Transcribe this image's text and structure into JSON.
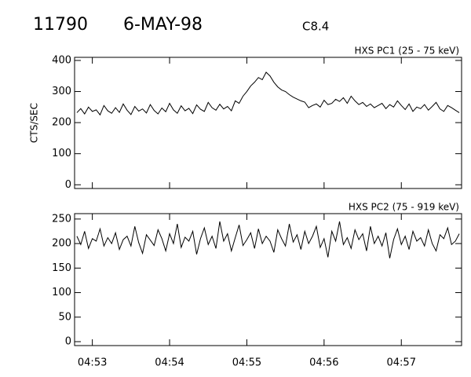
{
  "header": {
    "id": "11790",
    "date": "6-MAY-98",
    "class": "C8.4"
  },
  "chart_data": [
    {
      "type": "line",
      "title": "HXS PC1 (25 - 75 keV)",
      "y_label": "CTS/SEC",
      "color": "#000000",
      "xlim": [
        292.77,
        297.78
      ],
      "xticks": [
        {
          "value": 293,
          "label": "04:53"
        },
        {
          "value": 294,
          "label": "04:54"
        },
        {
          "value": 295,
          "label": "04:55"
        },
        {
          "value": 296,
          "label": "04:56"
        },
        {
          "value": 297,
          "label": "04:57"
        }
      ],
      "ylim": [
        -12,
        410
      ],
      "yticks": [
        0,
        100,
        200,
        300,
        400
      ],
      "x": [
        292.8,
        292.85,
        292.9,
        292.95,
        293.0,
        293.05,
        293.1,
        293.15,
        293.2,
        293.25,
        293.3,
        293.35,
        293.4,
        293.45,
        293.5,
        293.55,
        293.6,
        293.65,
        293.7,
        293.75,
        293.8,
        293.85,
        293.9,
        293.95,
        294.0,
        294.05,
        294.1,
        294.15,
        294.2,
        294.25,
        294.3,
        294.35,
        294.4,
        294.45,
        294.5,
        294.55,
        294.6,
        294.65,
        294.7,
        294.75,
        294.8,
        294.85,
        294.9,
        294.95,
        295.0,
        295.05,
        295.1,
        295.15,
        295.2,
        295.25,
        295.3,
        295.35,
        295.4,
        295.45,
        295.5,
        295.55,
        295.6,
        295.65,
        295.7,
        295.75,
        295.8,
        295.85,
        295.9,
        295.95,
        296.0,
        296.05,
        296.1,
        296.15,
        296.2,
        296.25,
        296.3,
        296.35,
        296.4,
        296.45,
        296.5,
        296.55,
        296.6,
        296.65,
        296.7,
        296.75,
        296.8,
        296.85,
        296.9,
        296.95,
        297.0,
        297.05,
        297.1,
        297.15,
        297.2,
        297.25,
        297.3,
        297.35,
        297.4,
        297.45,
        297.5,
        297.55,
        297.6,
        297.65,
        297.7,
        297.75
      ],
      "values": [
        232,
        245,
        228,
        250,
        236,
        241,
        225,
        255,
        238,
        230,
        248,
        233,
        260,
        240,
        226,
        252,
        237,
        244,
        231,
        258,
        239,
        228,
        247,
        235,
        262,
        241,
        230,
        254,
        238,
        246,
        229,
        257,
        243,
        236,
        265,
        248,
        240,
        259,
        244,
        252,
        238,
        270,
        262,
        285,
        300,
        318,
        330,
        345,
        338,
        362,
        350,
        330,
        315,
        305,
        300,
        290,
        282,
        276,
        270,
        266,
        248,
        255,
        260,
        250,
        272,
        258,
        262,
        275,
        268,
        280,
        262,
        285,
        270,
        258,
        265,
        252,
        260,
        248,
        255,
        262,
        245,
        258,
        250,
        270,
        255,
        242,
        260,
        236,
        250,
        245,
        258,
        240,
        252,
        265,
        244,
        236,
        255,
        248,
        240,
        232
      ]
    },
    {
      "type": "line",
      "title": "HXS PC2 (75 - 919 keV)",
      "color": "#000000",
      "xlim": [
        292.77,
        297.78
      ],
      "xticks": [
        {
          "value": 293,
          "label": "04:53"
        },
        {
          "value": 294,
          "label": "04:54"
        },
        {
          "value": 295,
          "label": "04:55"
        },
        {
          "value": 296,
          "label": "04:56"
        },
        {
          "value": 297,
          "label": "04:57"
        }
      ],
      "ylim": [
        -8,
        261
      ],
      "yticks": [
        0,
        50,
        100,
        150,
        200,
        250
      ],
      "x": [
        292.8,
        292.85,
        292.9,
        292.95,
        293.0,
        293.05,
        293.1,
        293.15,
        293.2,
        293.25,
        293.3,
        293.35,
        293.4,
        293.45,
        293.5,
        293.55,
        293.6,
        293.65,
        293.7,
        293.75,
        293.8,
        293.85,
        293.9,
        293.95,
        294.0,
        294.05,
        294.1,
        294.15,
        294.2,
        294.25,
        294.3,
        294.35,
        294.4,
        294.45,
        294.5,
        294.55,
        294.6,
        294.65,
        294.7,
        294.75,
        294.8,
        294.85,
        294.9,
        294.95,
        295.0,
        295.05,
        295.1,
        295.15,
        295.2,
        295.25,
        295.3,
        295.35,
        295.4,
        295.45,
        295.5,
        295.55,
        295.6,
        295.65,
        295.7,
        295.75,
        295.8,
        295.85,
        295.9,
        295.95,
        296.0,
        296.05,
        296.1,
        296.15,
        296.2,
        296.25,
        296.3,
        296.35,
        296.4,
        296.45,
        296.5,
        296.55,
        296.6,
        296.65,
        296.7,
        296.75,
        296.8,
        296.85,
        296.9,
        296.95,
        297.0,
        297.05,
        297.1,
        297.15,
        297.2,
        297.25,
        297.3,
        297.35,
        297.4,
        297.45,
        297.5,
        297.55,
        297.6,
        297.65,
        297.7,
        297.75
      ],
      "values": [
        215,
        198,
        225,
        190,
        210,
        205,
        230,
        195,
        212,
        200,
        222,
        188,
        208,
        215,
        195,
        235,
        202,
        180,
        218,
        207,
        196,
        228,
        210,
        185,
        220,
        200,
        240,
        192,
        213,
        205,
        225,
        178,
        210,
        232,
        198,
        215,
        190,
        245,
        205,
        220,
        185,
        212,
        238,
        196,
        208,
        222,
        190,
        230,
        200,
        215,
        205,
        182,
        228,
        210,
        195,
        240,
        203,
        218,
        188,
        225,
        200,
        215,
        235,
        192,
        210,
        172,
        225,
        205,
        245,
        198,
        212,
        190,
        228,
        208,
        220,
        185,
        235,
        200,
        215,
        195,
        222,
        170,
        208,
        230,
        198,
        215,
        188,
        225,
        205,
        212,
        195,
        228,
        200,
        185,
        218,
        210,
        232,
        198,
        205,
        220
      ]
    }
  ]
}
